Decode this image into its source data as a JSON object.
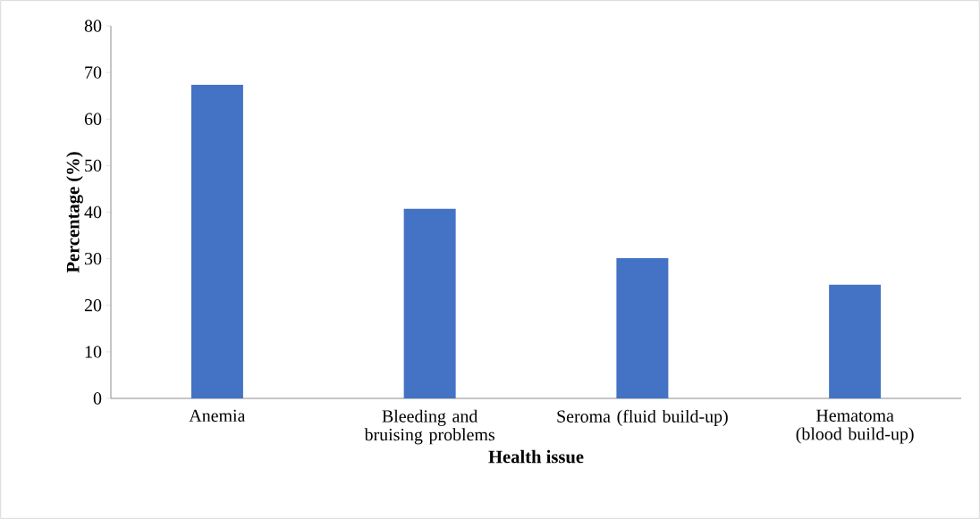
{
  "chart_data": {
    "type": "bar",
    "categories": [
      "Anemia",
      "Bleeding and bruising problems",
      "Seroma (fluid build-up)",
      "Hematoma (blood build-up)"
    ],
    "values": [
      67.4,
      40.7,
      30.1,
      24.4
    ],
    "color": "#4472c4",
    "ylim": [
      0,
      80
    ],
    "yticks": [
      0,
      10,
      20,
      30,
      40,
      50,
      60,
      70,
      80
    ],
    "xlabel": "Health issue",
    "ylabel": "Percentage (%)"
  }
}
